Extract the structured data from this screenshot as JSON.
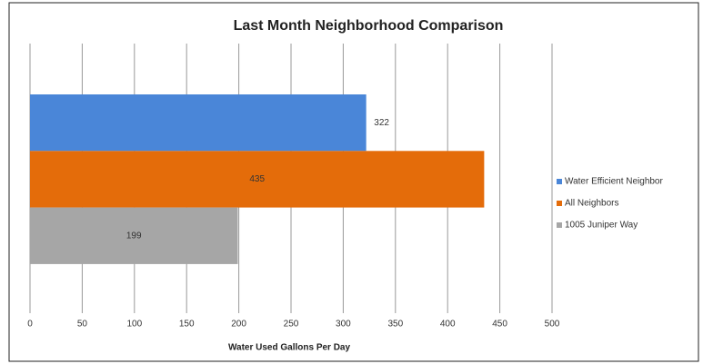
{
  "chart_data": {
    "type": "bar",
    "orientation": "horizontal",
    "title": "Last Month Neighborhood Comparison",
    "x_label": "Water Used Gallons Per Day",
    "categories": [
      null
    ],
    "series": [
      {
        "name": "Water Efficient Neighbor",
        "color": "#4a86d8",
        "values": [
          322
        ]
      },
      {
        "name": "All Neighbors",
        "color": "#e46c0a",
        "values": [
          435
        ]
      },
      {
        "name": "1005 Juniper Way",
        "color": "#a6a6a6",
        "values": [
          199
        ]
      }
    ],
    "xlim": [
      0,
      500
    ],
    "xticks": [
      0,
      50,
      100,
      150,
      200,
      250,
      300,
      350,
      400,
      450,
      500
    ],
    "grid": true,
    "legend": "right"
  }
}
